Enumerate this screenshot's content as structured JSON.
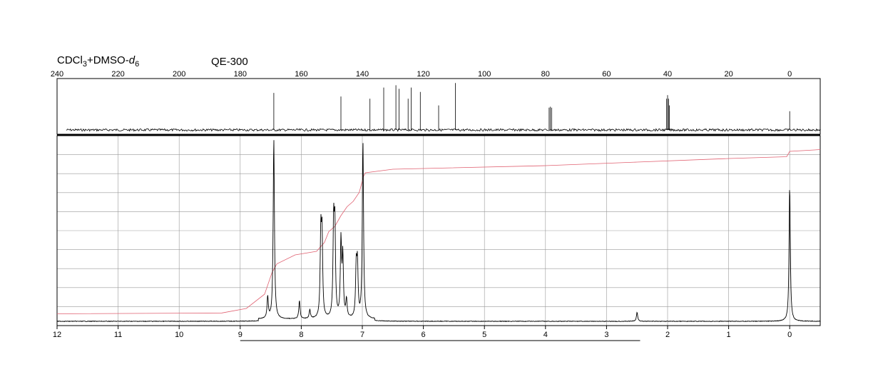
{
  "header": {
    "solvent_main": "CDCl",
    "solvent_sub1": "3",
    "solvent_mid": "+DMSO-",
    "solvent_d": "d",
    "solvent_sub2": "6",
    "instrument": "QE-300"
  },
  "colors": {
    "spectrum": "#000000",
    "grid": "#999999",
    "integral": "#e06070"
  },
  "chart_data": [
    {
      "type": "line",
      "title": "",
      "xlabel": "",
      "ylabel": "",
      "nucleus": "13C",
      "xlim": [
        240,
        -10
      ],
      "x_ticks": [
        240,
        220,
        200,
        180,
        160,
        140,
        120,
        100,
        80,
        60,
        40,
        20,
        0
      ],
      "x_reversed": true,
      "grid": false,
      "noise_range": [
        237,
        -10
      ],
      "peaks": [
        {
          "x": 169.0,
          "y": 0.83
        },
        {
          "x": 147.0,
          "y": 0.75
        },
        {
          "x": 137.5,
          "y": 0.7
        },
        {
          "x": 133.0,
          "y": 0.95
        },
        {
          "x": 129.0,
          "y": 1.0
        },
        {
          "x": 128.0,
          "y": 0.92
        },
        {
          "x": 125.0,
          "y": 0.7
        },
        {
          "x": 124.0,
          "y": 0.95
        },
        {
          "x": 121.0,
          "y": 0.85
        },
        {
          "x": 115.0,
          "y": 0.55
        },
        {
          "x": 109.5,
          "y": 1.05
        },
        {
          "x": 78.8,
          "y": 0.5
        },
        {
          "x": 78.4,
          "y": 0.52
        },
        {
          "x": 78.0,
          "y": 0.5
        },
        {
          "x": 40.3,
          "y": 0.7
        },
        {
          "x": 40.0,
          "y": 0.78
        },
        {
          "x": 39.7,
          "y": 0.7
        },
        {
          "x": 39.4,
          "y": 0.55
        },
        {
          "x": 0.0,
          "y": 0.42
        }
      ]
    },
    {
      "type": "line",
      "title": "",
      "xlabel": "",
      "ylabel": "",
      "nucleus": "1H",
      "xlim": [
        12,
        -0.5
      ],
      "x_ticks": [
        12,
        11,
        10,
        9,
        8,
        7,
        6,
        5,
        4,
        3,
        2,
        1,
        0
      ],
      "x_reversed": true,
      "grid": true,
      "peaks": [
        {
          "x": 8.55,
          "y": 0.12
        },
        {
          "x": 8.45,
          "y": 1.0
        },
        {
          "x": 8.03,
          "y": 0.1
        },
        {
          "x": 7.86,
          "y": 0.05
        },
        {
          "x": 7.68,
          "y": 0.45
        },
        {
          "x": 7.66,
          "y": 0.44
        },
        {
          "x": 7.47,
          "y": 0.5
        },
        {
          "x": 7.45,
          "y": 0.48
        },
        {
          "x": 7.35,
          "y": 0.42
        },
        {
          "x": 7.32,
          "y": 0.33
        },
        {
          "x": 7.26,
          "y": 0.1
        },
        {
          "x": 7.1,
          "y": 0.27
        },
        {
          "x": 7.08,
          "y": 0.28
        },
        {
          "x": 6.99,
          "y": 0.98
        },
        {
          "x": 2.5,
          "y": 0.05
        },
        {
          "x": 0.0,
          "y": 0.75
        }
      ],
      "integral": [
        [
          12,
          0.03
        ],
        [
          9.3,
          0.035
        ],
        [
          8.9,
          0.06
        ],
        [
          8.6,
          0.14
        ],
        [
          8.48,
          0.26
        ],
        [
          8.4,
          0.31
        ],
        [
          8.1,
          0.36
        ],
        [
          7.75,
          0.38
        ],
        [
          7.62,
          0.43
        ],
        [
          7.55,
          0.49
        ],
        [
          7.45,
          0.52
        ],
        [
          7.35,
          0.58
        ],
        [
          7.25,
          0.63
        ],
        [
          7.15,
          0.66
        ],
        [
          7.05,
          0.71
        ],
        [
          6.98,
          0.8
        ],
        [
          6.95,
          0.82
        ],
        [
          6.5,
          0.84
        ],
        [
          4.0,
          0.86
        ],
        [
          2.5,
          0.88
        ],
        [
          1.0,
          0.9
        ],
        [
          0.05,
          0.91
        ],
        [
          0.0,
          0.94
        ],
        [
          -0.5,
          0.95
        ]
      ],
      "bracket": [
        9.0,
        2.45
      ]
    }
  ]
}
